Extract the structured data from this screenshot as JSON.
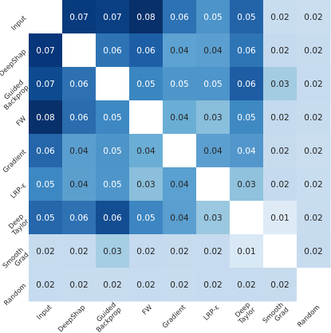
{
  "chart_data": {
    "type": "heatmap",
    "title": "",
    "xlabel": "",
    "ylabel": "",
    "rows": [
      "Input",
      "DeepShap",
      "Guided Backprop",
      "FW",
      "Gradient",
      "LRP-ε",
      "Deep Taylor",
      "Smooth Grad",
      "Random"
    ],
    "columns": [
      "Input",
      "DeepShap",
      "Guided Backprop",
      "FW",
      "Gradient",
      "LRP-ε",
      "Deep Taylor",
      "Smooth Grad",
      "Random"
    ],
    "values": [
      [
        null,
        0.07,
        0.07,
        0.08,
        0.06,
        0.05,
        0.05,
        0.02,
        0.02
      ],
      [
        0.07,
        null,
        0.06,
        0.06,
        0.04,
        0.04,
        0.06,
        0.02,
        0.02
      ],
      [
        0.07,
        0.06,
        null,
        0.05,
        0.05,
        0.05,
        0.06,
        0.03,
        0.02
      ],
      [
        0.08,
        0.06,
        0.05,
        null,
        0.04,
        0.03,
        0.05,
        0.02,
        0.02
      ],
      [
        0.06,
        0.04,
        0.05,
        0.04,
        null,
        0.04,
        0.04,
        0.02,
        0.02
      ],
      [
        0.05,
        0.04,
        0.05,
        0.03,
        0.04,
        null,
        0.03,
        0.02,
        0.02
      ],
      [
        0.05,
        0.06,
        0.06,
        0.05,
        0.04,
        0.03,
        null,
        0.01,
        0.02
      ],
      [
        0.02,
        0.02,
        0.03,
        0.02,
        0.02,
        0.02,
        0.01,
        null,
        0.02
      ],
      [
        0.02,
        0.02,
        0.02,
        0.02,
        0.02,
        0.02,
        0.02,
        0.02,
        null
      ]
    ],
    "labels": [
      [
        "",
        "0.07",
        "0.07",
        "0.08",
        "0.06",
        "0.05",
        "0.05",
        "0.02",
        "0.02"
      ],
      [
        "0.07",
        "",
        "0.06",
        "0.06",
        "0.04",
        "0.04",
        "0.06",
        "0.02",
        "0.02"
      ],
      [
        "0.07",
        "0.06",
        "",
        "0.05",
        "0.05",
        "0.05",
        "0.06",
        "0.03",
        "0.02"
      ],
      [
        "0.08",
        "0.06",
        "0.05",
        "",
        "0.04",
        "0.03",
        "0.05",
        "0.02",
        "0.02"
      ],
      [
        "0.06",
        "0.04",
        "0.05",
        "0.04",
        "",
        "0.04",
        "0.04",
        "0.02",
        "0.02"
      ],
      [
        "0.05",
        "0.04",
        "0.05",
        "0.03",
        "0.04",
        "",
        "0.03",
        "0.02",
        "0.02"
      ],
      [
        "0.05",
        "0.06",
        "0.06",
        "0.05",
        "0.04",
        "0.03",
        "",
        "0.01",
        "0.02"
      ],
      [
        "0.02",
        "0.02",
        "0.03",
        "0.02",
        "0.02",
        "0.02",
        "0.01",
        "",
        "0.02"
      ],
      [
        "0.02",
        "0.02",
        "0.02",
        "0.02",
        "0.02",
        "0.02",
        "0.02",
        "0.02",
        ""
      ]
    ],
    "colors": [
      [
        "#ffffff",
        "#083b7d",
        "#0a3f83",
        "#08306b",
        "#2d72b4",
        "#4c94c9",
        "#2363a8",
        "#c9ddf0",
        "#cadef0"
      ],
      [
        "#08367a",
        "#ffffff",
        "#2e74b5",
        "#1d5fa6",
        "#5ca2d2",
        "#5b9fd0",
        "#2e75b6",
        "#c5daee",
        "#c8dcef"
      ],
      [
        "#0d4a8f",
        "#2e71b3",
        "#ffffff",
        "#3a86c1",
        "#4e96ca",
        "#4d95ca",
        "#1e5da3",
        "#a3cce3",
        "#c6dbef"
      ],
      [
        "#08306b",
        "#2a6cae",
        "#3d88c3",
        "#ffffff",
        "#6aaed5",
        "#89bedc",
        "#3f89c3",
        "#c5daee",
        "#c8dcef"
      ],
      [
        "#2565a9",
        "#5a9ecf",
        "#4d94c9",
        "#6aaed6",
        "#ffffff",
        "#5b9fd0",
        "#5396cb",
        "#c7dbef",
        "#cadef0"
      ],
      [
        "#3d88c3",
        "#5b9fcf",
        "#4e95ca",
        "#8bbfdc",
        "#5aa0d0",
        "#ffffff",
        "#90c2de",
        "#c5daee",
        "#c9ddf0"
      ],
      [
        "#2567aa",
        "#2e72b4",
        "#134d92",
        "#3d86c1",
        "#5a9fcf",
        "#9ac8e0",
        "#ffffff",
        "#deebf7",
        "#c8dcef"
      ],
      [
        "#c7dbef",
        "#c6dbef",
        "#a5cde3",
        "#c5daee",
        "#c7dbef",
        "#c6dbef",
        "#d9e8f5",
        "#ffffff",
        "#c7dbef"
      ],
      [
        "#c6dbef",
        "#c8dcef",
        "#c8dcef",
        "#c6dbef",
        "#c8dcef",
        "#c6dbef",
        "#c6dbef",
        "#c7dbef",
        "#ffffff"
      ]
    ],
    "row_tick_lines": [
      [
        "Input"
      ],
      [
        "DeepShap"
      ],
      [
        "Guided",
        "Backprop"
      ],
      [
        "FW"
      ],
      [
        "Gradient"
      ],
      [
        "LRP-ε"
      ],
      [
        "Deep",
        "Taylor"
      ],
      [
        "Smooth",
        "Grad"
      ],
      [
        "Random"
      ]
    ],
    "col_tick_lines": [
      [
        "Input"
      ],
      [
        "DeepShap"
      ],
      [
        "Guided",
        "Backprop"
      ],
      [
        "FW"
      ],
      [
        "Gradient"
      ],
      [
        "LRP-ε"
      ],
      [
        "Deep",
        "Taylor"
      ],
      [
        "Smooth",
        "Grad"
      ],
      [
        "Random"
      ]
    ]
  }
}
